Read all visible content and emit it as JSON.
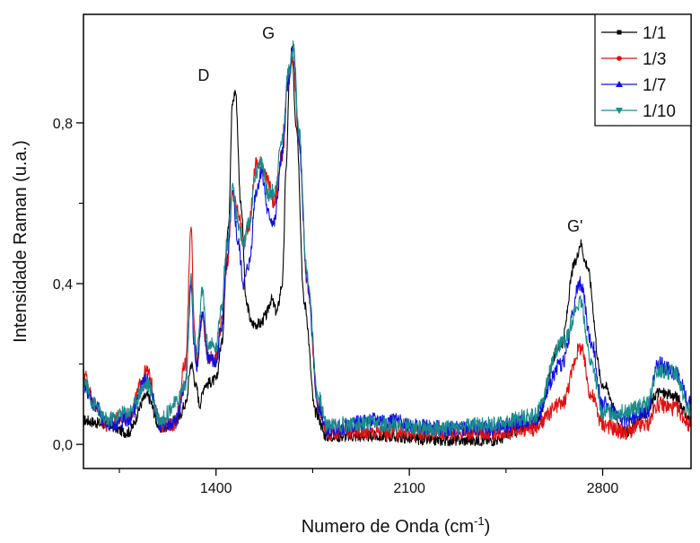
{
  "chart_data": {
    "type": "line",
    "xlabel": "Numero de Onda (cm",
    "xlabel_sup": "-1",
    "xlabel_end": ")",
    "ylabel": "Intensidade Raman (u.a.)",
    "xlim": [
      920,
      3120
    ],
    "ylim": [
      -0.06,
      1.07
    ],
    "x_ticks": [
      1400,
      2100,
      2800
    ],
    "x_tick_labels": [
      "1400",
      "2100",
      "2800"
    ],
    "x_minor_ticks": [
      1050,
      1750,
      2450
    ],
    "y_ticks": [
      0.0,
      0.4,
      0.8
    ],
    "y_tick_labels": [
      "0,0",
      "0,4",
      "0,8"
    ],
    "y_minor_ticks": [
      0.2,
      0.6
    ],
    "grid": false,
    "legend_position": "top-right",
    "annotations": [
      {
        "text": "D",
        "x": 1355,
        "y": 0.905
      },
      {
        "text": "G",
        "x": 1590,
        "y": 1.01
      },
      {
        "text": "G'",
        "x": 2700,
        "y": 0.53
      }
    ],
    "series": [
      {
        "name": "1/1",
        "color": "#000000",
        "marker": "square",
        "noise": 0.014,
        "points": [
          [
            920,
            0.06
          ],
          [
            1000,
            0.05
          ],
          [
            1080,
            0.03
          ],
          [
            1150,
            0.12
          ],
          [
            1200,
            0.04
          ],
          [
            1260,
            0.06
          ],
          [
            1290,
            0.1
          ],
          [
            1310,
            0.2
          ],
          [
            1330,
            0.14
          ],
          [
            1340,
            0.1
          ],
          [
            1360,
            0.15
          ],
          [
            1400,
            0.16
          ],
          [
            1420,
            0.25
          ],
          [
            1445,
            0.55
          ],
          [
            1460,
            0.85
          ],
          [
            1470,
            0.88
          ],
          [
            1490,
            0.6
          ],
          [
            1510,
            0.35
          ],
          [
            1530,
            0.3
          ],
          [
            1560,
            0.3
          ],
          [
            1580,
            0.32
          ],
          [
            1600,
            0.36
          ],
          [
            1620,
            0.33
          ],
          [
            1640,
            0.4
          ],
          [
            1655,
            0.7
          ],
          [
            1665,
            0.9
          ],
          [
            1675,
            0.98
          ],
          [
            1690,
            0.8
          ],
          [
            1720,
            0.35
          ],
          [
            1760,
            0.08
          ],
          [
            1800,
            0.02
          ],
          [
            2000,
            0.02
          ],
          [
            2200,
            0.01
          ],
          [
            2400,
            0.01
          ],
          [
            2550,
            0.05
          ],
          [
            2650,
            0.25
          ],
          [
            2700,
            0.45
          ],
          [
            2720,
            0.5
          ],
          [
            2740,
            0.45
          ],
          [
            2800,
            0.15
          ],
          [
            2880,
            0.03
          ],
          [
            2960,
            0.08
          ],
          [
            3000,
            0.13
          ],
          [
            3060,
            0.12
          ],
          [
            3120,
            0.06
          ]
        ]
      },
      {
        "name": "1/3",
        "color": "#e01010",
        "marker": "circle",
        "noise": 0.02,
        "points": [
          [
            920,
            0.18
          ],
          [
            960,
            0.1
          ],
          [
            1000,
            0.05
          ],
          [
            1080,
            0.07
          ],
          [
            1150,
            0.18
          ],
          [
            1200,
            0.05
          ],
          [
            1250,
            0.05
          ],
          [
            1290,
            0.2
          ],
          [
            1310,
            0.55
          ],
          [
            1320,
            0.3
          ],
          [
            1330,
            0.2
          ],
          [
            1350,
            0.32
          ],
          [
            1370,
            0.22
          ],
          [
            1400,
            0.22
          ],
          [
            1420,
            0.3
          ],
          [
            1440,
            0.45
          ],
          [
            1460,
            0.62
          ],
          [
            1480,
            0.58
          ],
          [
            1500,
            0.5
          ],
          [
            1520,
            0.55
          ],
          [
            1545,
            0.7
          ],
          [
            1565,
            0.7
          ],
          [
            1590,
            0.65
          ],
          [
            1610,
            0.6
          ],
          [
            1640,
            0.72
          ],
          [
            1660,
            0.9
          ],
          [
            1680,
            0.95
          ],
          [
            1700,
            0.75
          ],
          [
            1730,
            0.4
          ],
          [
            1770,
            0.1
          ],
          [
            1800,
            0.03
          ],
          [
            2000,
            0.03
          ],
          [
            2200,
            0.03
          ],
          [
            2400,
            0.03
          ],
          [
            2550,
            0.04
          ],
          [
            2650,
            0.1
          ],
          [
            2720,
            0.24
          ],
          [
            2760,
            0.12
          ],
          [
            2800,
            0.05
          ],
          [
            2880,
            0.03
          ],
          [
            2960,
            0.05
          ],
          [
            3000,
            0.1
          ],
          [
            3060,
            0.09
          ],
          [
            3120,
            0.05
          ]
        ]
      },
      {
        "name": "1/7",
        "color": "#1010e0",
        "marker": "triangle",
        "noise": 0.02,
        "points": [
          [
            920,
            0.15
          ],
          [
            960,
            0.1
          ],
          [
            1000,
            0.05
          ],
          [
            1080,
            0.06
          ],
          [
            1150,
            0.16
          ],
          [
            1200,
            0.05
          ],
          [
            1250,
            0.05
          ],
          [
            1290,
            0.15
          ],
          [
            1310,
            0.4
          ],
          [
            1320,
            0.25
          ],
          [
            1330,
            0.2
          ],
          [
            1350,
            0.32
          ],
          [
            1370,
            0.22
          ],
          [
            1400,
            0.2
          ],
          [
            1420,
            0.3
          ],
          [
            1440,
            0.45
          ],
          [
            1460,
            0.62
          ],
          [
            1480,
            0.5
          ],
          [
            1500,
            0.4
          ],
          [
            1520,
            0.45
          ],
          [
            1545,
            0.63
          ],
          [
            1565,
            0.68
          ],
          [
            1590,
            0.57
          ],
          [
            1610,
            0.55
          ],
          [
            1640,
            0.72
          ],
          [
            1660,
            0.9
          ],
          [
            1680,
            0.98
          ],
          [
            1700,
            0.75
          ],
          [
            1730,
            0.4
          ],
          [
            1770,
            0.1
          ],
          [
            1800,
            0.04
          ],
          [
            2000,
            0.06
          ],
          [
            2200,
            0.04
          ],
          [
            2400,
            0.04
          ],
          [
            2550,
            0.06
          ],
          [
            2650,
            0.2
          ],
          [
            2720,
            0.4
          ],
          [
            2760,
            0.25
          ],
          [
            2800,
            0.1
          ],
          [
            2880,
            0.06
          ],
          [
            2960,
            0.08
          ],
          [
            3000,
            0.2
          ],
          [
            3060,
            0.18
          ],
          [
            3120,
            0.1
          ]
        ]
      },
      {
        "name": "1/10",
        "color": "#1a8c8c",
        "marker": "inverted-triangle",
        "noise": 0.02,
        "points": [
          [
            920,
            0.16
          ],
          [
            960,
            0.1
          ],
          [
            1000,
            0.06
          ],
          [
            1080,
            0.08
          ],
          [
            1150,
            0.15
          ],
          [
            1200,
            0.06
          ],
          [
            1250,
            0.1
          ],
          [
            1290,
            0.15
          ],
          [
            1310,
            0.42
          ],
          [
            1320,
            0.27
          ],
          [
            1330,
            0.22
          ],
          [
            1350,
            0.38
          ],
          [
            1370,
            0.25
          ],
          [
            1400,
            0.24
          ],
          [
            1420,
            0.35
          ],
          [
            1440,
            0.5
          ],
          [
            1460,
            0.63
          ],
          [
            1480,
            0.55
          ],
          [
            1500,
            0.5
          ],
          [
            1520,
            0.55
          ],
          [
            1545,
            0.68
          ],
          [
            1565,
            0.7
          ],
          [
            1590,
            0.62
          ],
          [
            1610,
            0.63
          ],
          [
            1640,
            0.76
          ],
          [
            1660,
            0.92
          ],
          [
            1680,
            0.99
          ],
          [
            1700,
            0.78
          ],
          [
            1730,
            0.42
          ],
          [
            1770,
            0.12
          ],
          [
            1800,
            0.05
          ],
          [
            2000,
            0.05
          ],
          [
            2200,
            0.04
          ],
          [
            2400,
            0.05
          ],
          [
            2550,
            0.07
          ],
          [
            2650,
            0.25
          ],
          [
            2720,
            0.35
          ],
          [
            2760,
            0.2
          ],
          [
            2800,
            0.08
          ],
          [
            2880,
            0.08
          ],
          [
            2960,
            0.1
          ],
          [
            3000,
            0.18
          ],
          [
            3060,
            0.18
          ],
          [
            3120,
            0.08
          ]
        ]
      }
    ]
  }
}
